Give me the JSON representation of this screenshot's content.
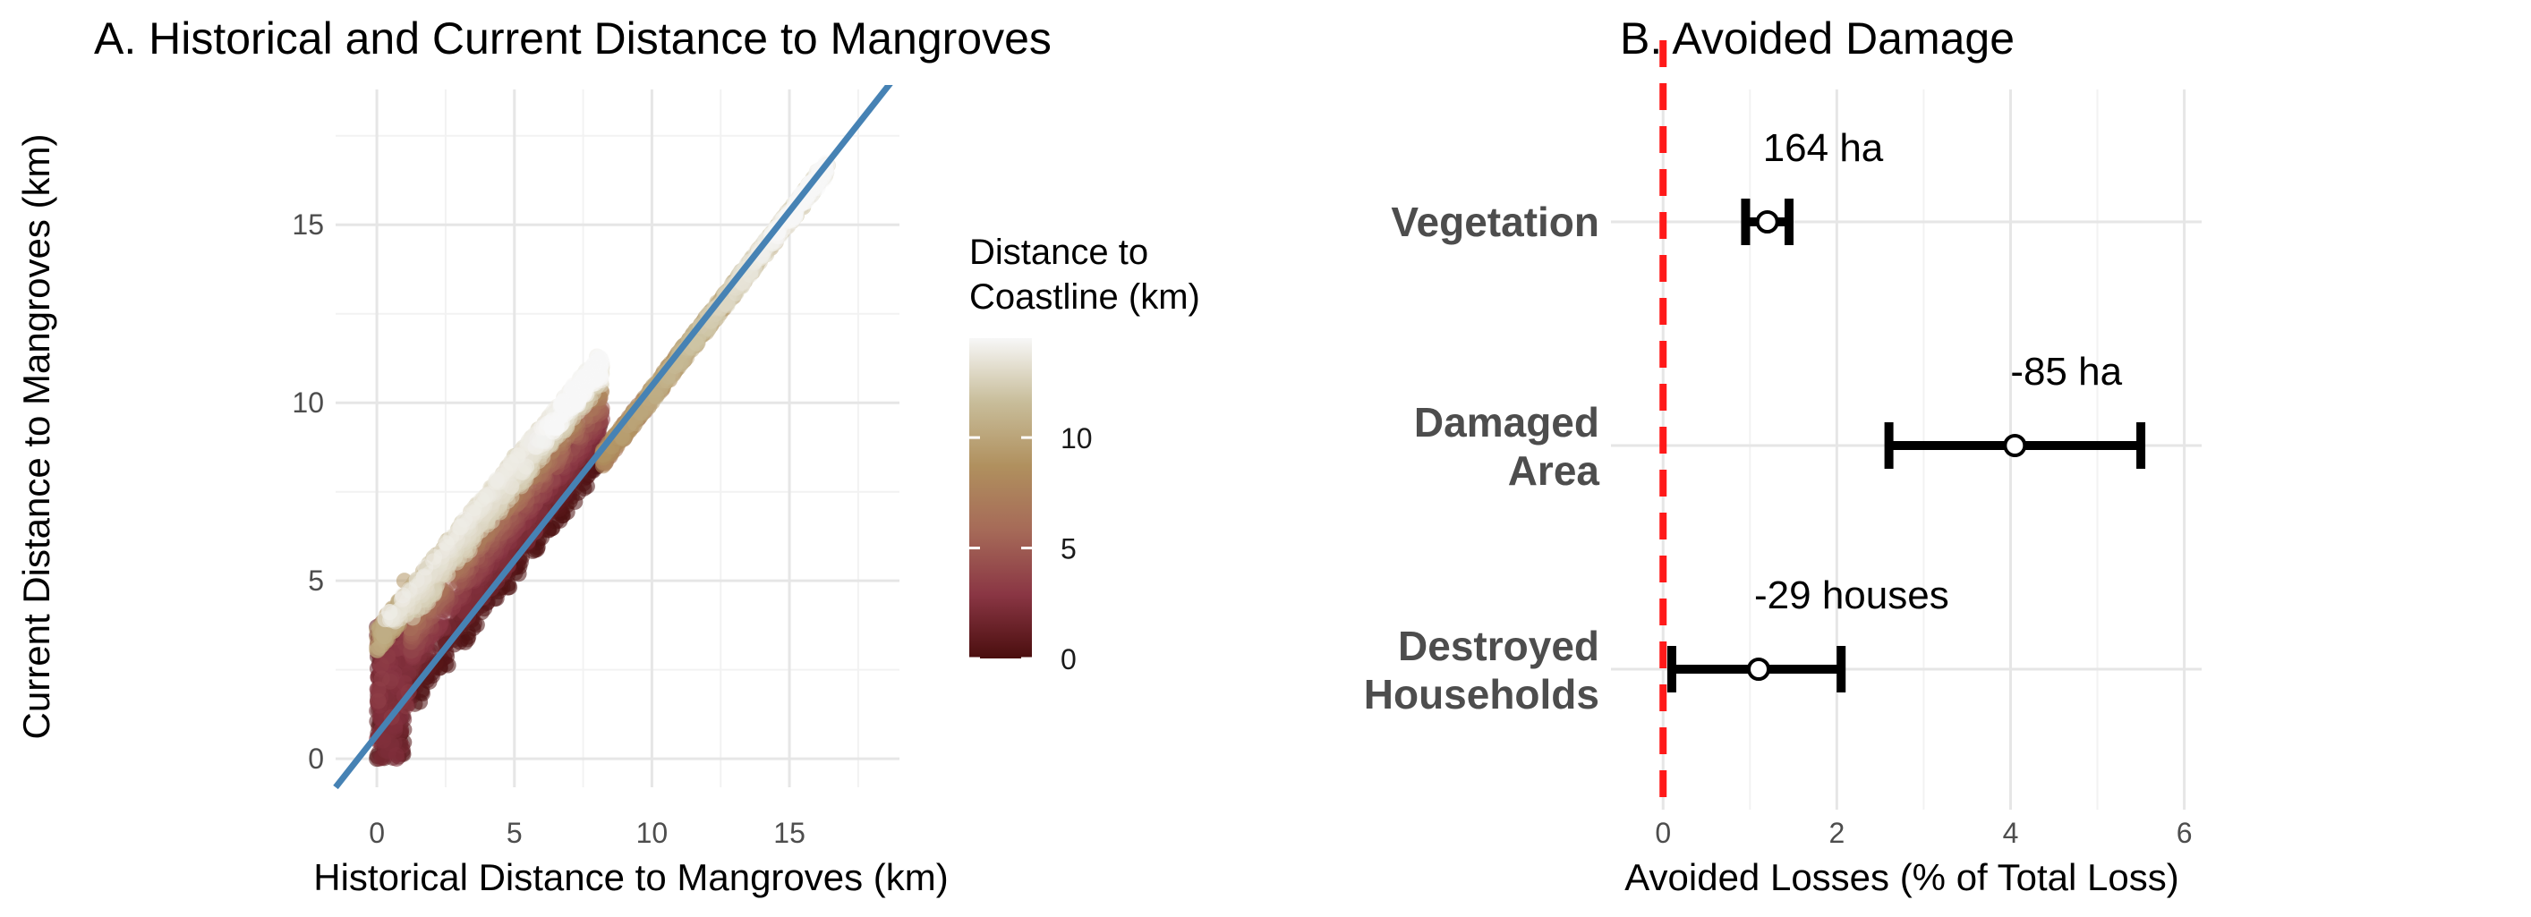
{
  "chart_data": [
    {
      "type": "scatter",
      "title": "A. Historical and Current Distance to Mangroves",
      "xlabel": "Historical Distance to Mangroves (km)",
      "ylabel": "Current Distance to Mangroves (km)",
      "xlim": [
        -1.5,
        19
      ],
      "ylim": [
        -0.8,
        18.8
      ],
      "xticks": [
        0,
        5,
        10,
        15
      ],
      "yticks": [
        0,
        5,
        10,
        15
      ],
      "grid": true,
      "color_legend": {
        "title_line1": "Distance to",
        "title_line2": "Coastline (km)",
        "ticks": [
          0,
          5,
          10
        ],
        "range": [
          0,
          14.5
        ],
        "colors": [
          "#4a0e0e",
          "#8a3644",
          "#a66a58",
          "#b0905e",
          "#c8bd9a",
          "#f7f7f7"
        ]
      },
      "reference_line": {
        "x": [
          -1.5,
          19
        ],
        "y": [
          -0.8,
          19.3
        ],
        "color": "#4682b4"
      },
      "points_summary": [
        {
          "x": 0,
          "y": 0,
          "c": 0
        },
        {
          "x": 0,
          "y": 3.7,
          "c": 1
        },
        {
          "x": 1,
          "y": 5,
          "c": 9
        },
        {
          "x": 5,
          "y": 8.5,
          "c": 12
        },
        {
          "x": 8,
          "y": 11.3,
          "c": 14
        },
        {
          "x": 8,
          "y": 9.4,
          "c": 1
        },
        {
          "x": 12,
          "y": 12.3,
          "c": 10
        },
        {
          "x": 16,
          "y": 16.5,
          "c": 14
        }
      ]
    },
    {
      "type": "errorbar",
      "title": "B. Avoided Damage",
      "xlabel": "Avoided Losses (% of Total Loss)",
      "xlim": [
        -0.6,
        6.2
      ],
      "xticks": [
        0,
        2,
        4,
        6
      ],
      "reference_line": {
        "x": 0,
        "color": "#ff1a1a",
        "style": "dashed"
      },
      "categories": [
        {
          "line1": "Vegetation",
          "line2": "",
          "estimate": 1.2,
          "lower": 0.95,
          "upper": 1.45,
          "annotation": "164 ha"
        },
        {
          "line1": "Damaged",
          "line2": "Area",
          "estimate": 4.05,
          "lower": 2.6,
          "upper": 5.5,
          "annotation": "-85 ha"
        },
        {
          "line1": "Destroyed",
          "line2": "Households",
          "estimate": 1.1,
          "lower": 0.1,
          "upper": 2.05,
          "annotation": "-29 houses"
        }
      ]
    }
  ]
}
